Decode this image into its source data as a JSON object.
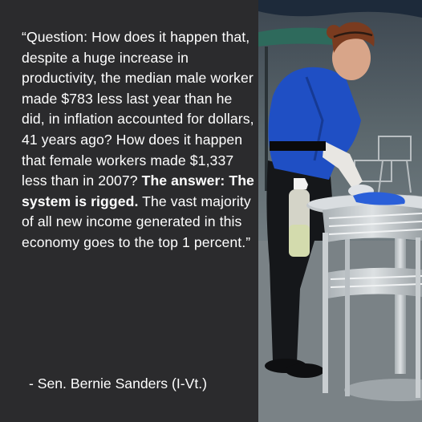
{
  "quote": {
    "open": "“Question: How does it happen that, despite a huge increase in productivity, the median male worker made $783 less last year than he did, in inflation accounted for dollars, 41 years ago? How does it happen that female workers made $1,337 less than in 2007? ",
    "emphasis": "The answer: The system is rigged.",
    "close": " The vast majority of all new income generated in this economy goes to the top 1 percent.”"
  },
  "attribution": "- Sen. Bernie Sanders (I-Vt.)",
  "colors": {
    "panel_bg": "#2b2b2d",
    "text": "#ffffff",
    "shirt_blue": "#1f4fc4"
  },
  "photo": {
    "subject": "worker wiping a metal cafe table"
  }
}
